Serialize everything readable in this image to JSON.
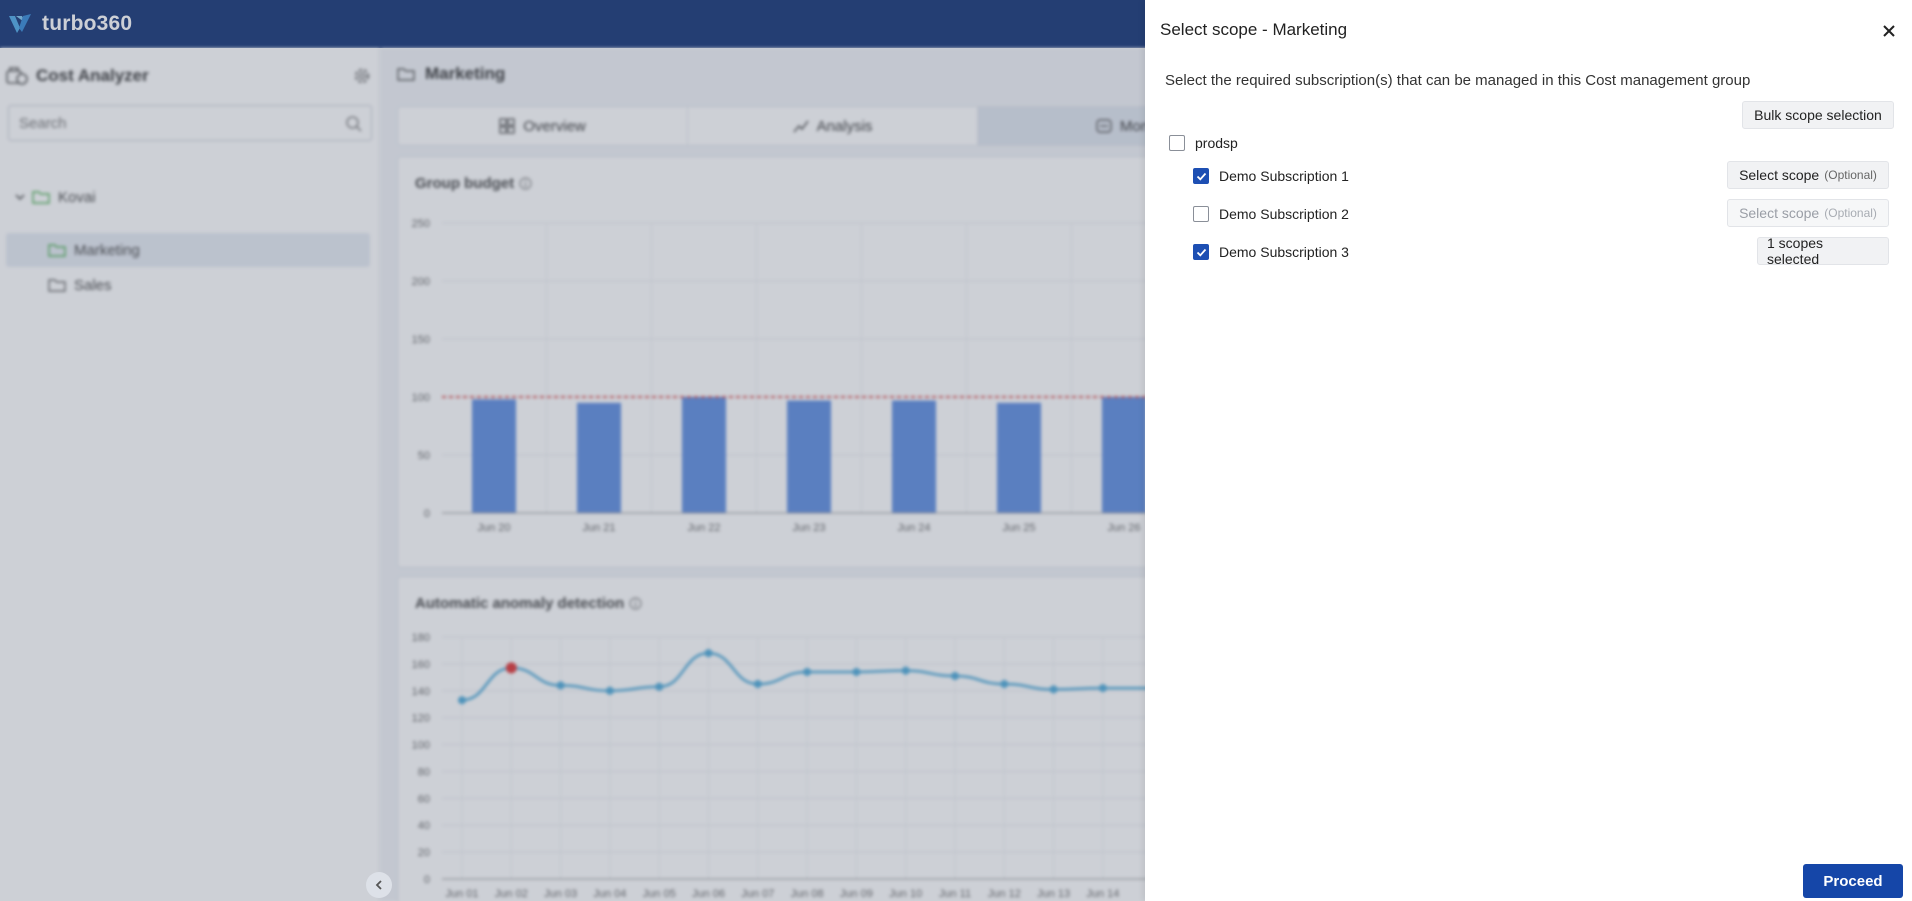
{
  "brand": {
    "name": "turbo360"
  },
  "sidebar": {
    "title": "Cost Analyzer",
    "search_placeholder": "Search",
    "tree": [
      {
        "label": "Kovai"
      },
      {
        "label": "Marketing"
      },
      {
        "label": "Sales"
      }
    ]
  },
  "main": {
    "title": "Marketing",
    "tabs": [
      {
        "label": "Overview"
      },
      {
        "label": "Analysis"
      },
      {
        "label": "Mon"
      }
    ],
    "budget_title": "Group budget",
    "anomaly_title": "Automatic anomaly detection"
  },
  "chart_data": [
    {
      "type": "bar",
      "title": "Group budget",
      "categories": [
        "Jun 20",
        "Jun 21",
        "Jun 22",
        "Jun 23",
        "Jun 24",
        "Jun 25",
        "Jun 26"
      ],
      "values": [
        98,
        95,
        100,
        97,
        97,
        95,
        100
      ],
      "budget_line": 100,
      "yticks": [
        0,
        50,
        100,
        150,
        200,
        250
      ],
      "ylim": [
        0,
        250
      ],
      "colors": {
        "bar": "#5b8be0",
        "budget": "#e05555"
      },
      "grid": true
    },
    {
      "type": "line",
      "title": "Automatic anomaly detection",
      "categories": [
        "Jun 01",
        "Jun 02",
        "Jun 03",
        "Jun 04",
        "Jun 05",
        "Jun 06",
        "Jun 07",
        "Jun 08",
        "Jun 09",
        "Jun 10",
        "Jun 11",
        "Jun 12",
        "Jun 13",
        "Jun 14"
      ],
      "values": [
        133,
        157,
        144,
        140,
        143,
        168,
        145,
        154,
        154,
        155,
        151,
        145,
        141,
        142
      ],
      "anomaly_index": 1,
      "yticks": [
        0,
        20,
        40,
        60,
        80,
        100,
        120,
        140,
        160,
        180
      ],
      "ylim": [
        0,
        180
      ],
      "colors": {
        "line": "#4aa8d8",
        "anomaly": "#e03030"
      },
      "grid": true
    }
  ],
  "drawer": {
    "title": "Select scope - Marketing",
    "description": "Select the required subscription(s) that can be managed in this Cost management group",
    "bulk_label": "Bulk scope selection",
    "parent": {
      "label": "prodsp",
      "checked": false
    },
    "subscriptions": [
      {
        "label": "Demo Subscription 1",
        "checked": true,
        "action": "Select scope",
        "optional": "(Optional)",
        "disabled": false
      },
      {
        "label": "Demo Subscription 2",
        "checked": false,
        "action": "Select scope",
        "optional": "(Optional)",
        "disabled": true
      },
      {
        "label": "Demo Subscription 3",
        "checked": true,
        "action": "1 scopes selected",
        "optional": "",
        "disabled": false
      }
    ],
    "proceed_label": "Proceed"
  },
  "colors": {
    "topbar": "#0e2f72",
    "primary": "#1546a8",
    "checkbox": "#1d4fb3"
  }
}
